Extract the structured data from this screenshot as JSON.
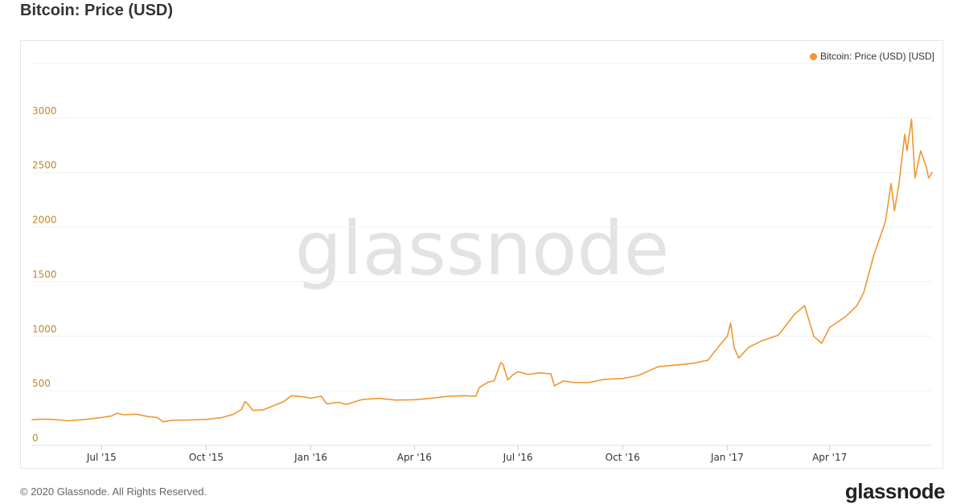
{
  "page": {
    "title": "Bitcoin: Price (USD)",
    "copyright": "© 2020 Glassnode. All Rights Reserved.",
    "brand": "glassnode",
    "watermark": "glassnode"
  },
  "chart_data": {
    "type": "line",
    "title": "Bitcoin: Price (USD)",
    "xlabel": "",
    "ylabel": "",
    "ylim": [
      0,
      3500
    ],
    "xlim": [
      "2015-05-01",
      "2017-06-30"
    ],
    "yticks": [
      0,
      500,
      1000,
      1500,
      2000,
      2500,
      3000
    ],
    "ytick_labels": [
      "0",
      "500",
      "1000",
      "1500",
      "2000",
      "2500",
      "3000"
    ],
    "xticks": [
      "2015-07-01",
      "2015-10-01",
      "2016-01-01",
      "2016-04-01",
      "2016-07-01",
      "2016-10-01",
      "2017-01-01",
      "2017-04-01"
    ],
    "xtick_labels": [
      "Jul '15",
      "Oct '15",
      "Jan '16",
      "Apr '16",
      "Jul '16",
      "Oct '16",
      "Jan '17",
      "Apr '17"
    ],
    "grid": true,
    "legend_position": "top-right",
    "series": [
      {
        "name": "Bitcoin: Price (USD) [USD]",
        "color": "#f0962f",
        "points": [
          [
            "2015-05-01",
            235
          ],
          [
            "2015-05-10",
            240
          ],
          [
            "2015-05-20",
            237
          ],
          [
            "2015-06-01",
            225
          ],
          [
            "2015-06-15",
            235
          ],
          [
            "2015-07-01",
            255
          ],
          [
            "2015-07-10",
            270
          ],
          [
            "2015-07-15",
            295
          ],
          [
            "2015-07-20",
            280
          ],
          [
            "2015-08-01",
            285
          ],
          [
            "2015-08-10",
            265
          ],
          [
            "2015-08-19",
            255
          ],
          [
            "2015-08-24",
            215
          ],
          [
            "2015-09-01",
            230
          ],
          [
            "2015-09-15",
            232
          ],
          [
            "2015-10-01",
            237
          ],
          [
            "2015-10-15",
            255
          ],
          [
            "2015-10-25",
            285
          ],
          [
            "2015-11-01",
            330
          ],
          [
            "2015-11-04",
            400
          ],
          [
            "2015-11-06",
            385
          ],
          [
            "2015-11-11",
            320
          ],
          [
            "2015-11-20",
            325
          ],
          [
            "2015-12-01",
            370
          ],
          [
            "2015-12-08",
            400
          ],
          [
            "2015-12-15",
            455
          ],
          [
            "2015-12-25",
            445
          ],
          [
            "2016-01-01",
            432
          ],
          [
            "2016-01-10",
            450
          ],
          [
            "2016-01-15",
            380
          ],
          [
            "2016-01-25",
            395
          ],
          [
            "2016-02-01",
            375
          ],
          [
            "2016-02-15",
            420
          ],
          [
            "2016-03-01",
            430
          ],
          [
            "2016-03-15",
            415
          ],
          [
            "2016-04-01",
            418
          ],
          [
            "2016-04-15",
            430
          ],
          [
            "2016-05-01",
            450
          ],
          [
            "2016-05-15",
            455
          ],
          [
            "2016-05-25",
            450
          ],
          [
            "2016-05-28",
            530
          ],
          [
            "2016-06-05",
            580
          ],
          [
            "2016-06-10",
            590
          ],
          [
            "2016-06-16",
            760
          ],
          [
            "2016-06-18",
            740
          ],
          [
            "2016-06-22",
            600
          ],
          [
            "2016-06-27",
            650
          ],
          [
            "2016-07-01",
            675
          ],
          [
            "2016-07-10",
            650
          ],
          [
            "2016-07-20",
            665
          ],
          [
            "2016-07-30",
            655
          ],
          [
            "2016-08-02",
            545
          ],
          [
            "2016-08-10",
            590
          ],
          [
            "2016-08-20",
            575
          ],
          [
            "2016-09-01",
            575
          ],
          [
            "2016-09-15",
            605
          ],
          [
            "2016-10-01",
            612
          ],
          [
            "2016-10-15",
            640
          ],
          [
            "2016-11-01",
            720
          ],
          [
            "2016-11-15",
            735
          ],
          [
            "2016-12-01",
            750
          ],
          [
            "2016-12-15",
            780
          ],
          [
            "2016-12-24",
            900
          ],
          [
            "2017-01-01",
            1000
          ],
          [
            "2017-01-04",
            1120
          ],
          [
            "2017-01-07",
            900
          ],
          [
            "2017-01-11",
            800
          ],
          [
            "2017-01-20",
            900
          ],
          [
            "2017-02-01",
            960
          ],
          [
            "2017-02-15",
            1010
          ],
          [
            "2017-03-01",
            1200
          ],
          [
            "2017-03-10",
            1280
          ],
          [
            "2017-03-18",
            1000
          ],
          [
            "2017-03-25",
            935
          ],
          [
            "2017-04-01",
            1080
          ],
          [
            "2017-04-15",
            1180
          ],
          [
            "2017-04-25",
            1280
          ],
          [
            "2017-05-01",
            1400
          ],
          [
            "2017-05-10",
            1750
          ],
          [
            "2017-05-20",
            2050
          ],
          [
            "2017-05-25",
            2400
          ],
          [
            "2017-05-28",
            2150
          ],
          [
            "2017-06-01",
            2400
          ],
          [
            "2017-06-06",
            2850
          ],
          [
            "2017-06-08",
            2700
          ],
          [
            "2017-06-12",
            2990
          ],
          [
            "2017-06-15",
            2450
          ],
          [
            "2017-06-20",
            2700
          ],
          [
            "2017-06-25",
            2550
          ],
          [
            "2017-06-27",
            2450
          ],
          [
            "2017-06-30",
            2500
          ]
        ]
      }
    ]
  }
}
